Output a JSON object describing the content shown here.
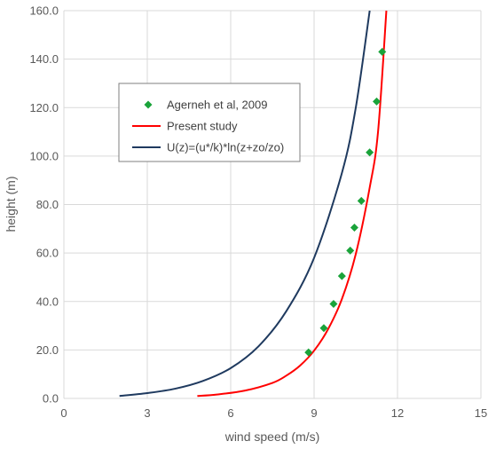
{
  "chart_data": {
    "type": "line",
    "xlabel": "wind speed (m/s)",
    "ylabel": "height (m)",
    "xlim": [
      0,
      15
    ],
    "ylim": [
      0,
      160
    ],
    "x_ticks": [
      "0",
      "3",
      "6",
      "9",
      "12",
      "15"
    ],
    "y_ticks": [
      "0.0",
      "20.0",
      "40.0",
      "60.0",
      "80.0",
      "100.0",
      "120.0",
      "140.0",
      "160.0"
    ],
    "grid": true,
    "legend_position": "upper-left",
    "colors": {
      "markers": "#1aa33a",
      "present": "#ff0000",
      "log": "#1f3a5f"
    },
    "series": [
      {
        "name": "Agerneh et al, 2009",
        "style": "markers",
        "x": [
          8.8,
          9.35,
          9.7,
          10.0,
          10.3,
          10.45,
          10.7,
          11.0,
          11.25,
          11.45
        ],
        "y": [
          19,
          29,
          39,
          50.5,
          61,
          70.5,
          81.5,
          101.5,
          122.5,
          143
        ]
      },
      {
        "name": "Present study",
        "style": "line",
        "x": [
          4.8,
          5.5,
          6.5,
          7.5,
          8.0,
          8.5,
          9.0,
          9.5,
          10.0,
          10.5,
          11.0,
          11.3,
          11.6
        ],
        "y": [
          1,
          1.6,
          3.2,
          6.4,
          9.4,
          13.6,
          19.7,
          28.5,
          41.0,
          59.6,
          87.0,
          110.0,
          160.0
        ]
      },
      {
        "name": "U(z)=(u*/k)*ln(z+zo/zo)",
        "style": "line",
        "x": [
          2.0,
          3.0,
          4.0,
          5.0,
          6.0,
          7.0,
          8.0,
          9.0,
          10.0,
          10.5,
          11.0
        ],
        "y": [
          1,
          2.2,
          4.0,
          7.2,
          12.5,
          21.5,
          36.0,
          58.0,
          93.0,
          120.0,
          160.0
        ]
      }
    ]
  }
}
